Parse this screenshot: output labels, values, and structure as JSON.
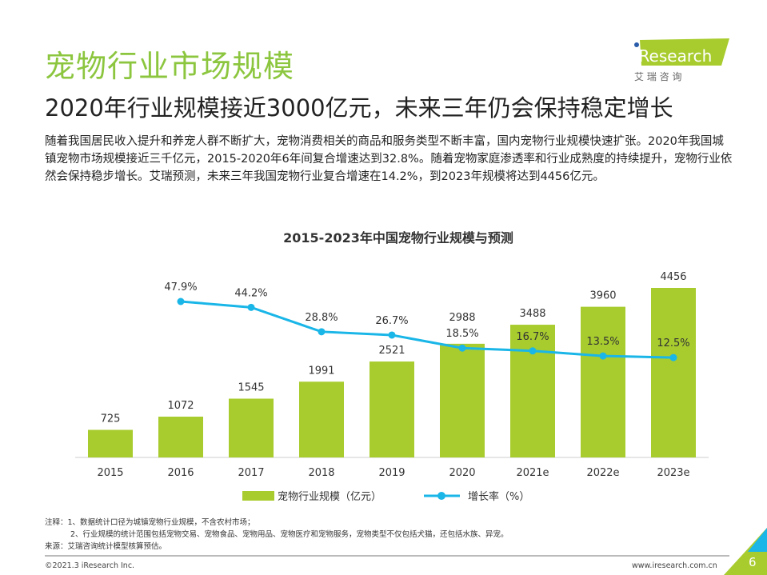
{
  "header": {
    "title": "宠物行业市场规模",
    "subtitle": "2020年行业规模接近3000亿元，未来三年仍会保持稳定增长"
  },
  "logo": {
    "brand": "iResearch",
    "cn": "艾 瑞 咨 询"
  },
  "body_text": "随着我国居民收入提升和养宠人群不断扩大，宠物消费相关的商品和服务类型不断丰富，国内宠物行业规模快速扩张。2020年我国城镇宠物市场规模接近三千亿元，2015-2020年6年间复合增速达到32.8%。随着宠物家庭渗透率和行业成熟度的持续提升，宠物行业依然会保持稳步增长。艾瑞预测，未来三年我国宠物行业复合增速在14.2%，到2023年规模将达到4456亿元。",
  "chart_data": {
    "type": "bar",
    "title": "2015-2023年中国宠物行业规模与预测",
    "categories": [
      "2015",
      "2016",
      "2017",
      "2018",
      "2019",
      "2020",
      "2021e",
      "2022e",
      "2023e"
    ],
    "series": [
      {
        "name": "宠物行业规模（亿元）",
        "type": "bar",
        "color": "#a8cc2e",
        "values": [
          725,
          1072,
          1545,
          1991,
          2521,
          2988,
          3488,
          3960,
          4456
        ]
      },
      {
        "name": "增长率（%）",
        "type": "line",
        "color": "#1ab6e8",
        "values": [
          null,
          47.9,
          44.2,
          28.8,
          26.7,
          18.5,
          16.7,
          13.5,
          12.5
        ],
        "labels": [
          "",
          "47.9%",
          "44.2%",
          "28.8%",
          "26.7%",
          "18.5%",
          "16.7%",
          "13.5%",
          "12.5%"
        ]
      }
    ],
    "legend": "bottom"
  },
  "notes": [
    "注释：1、数据统计口径为城镇宠物行业规模，不含农村市场；",
    "2、行业规模的统计范围包括宠物交易、宠物食品、宠物用品、宠物医疗和宠物服务，宠物类型不仅包括犬猫，还包括水族、异宠。",
    "来源：艾瑞咨询统计模型核算预估。"
  ],
  "footer": {
    "copyright": "©2021.3 iResearch Inc.",
    "site": "www.iresearch.com.cn",
    "page": "6"
  }
}
